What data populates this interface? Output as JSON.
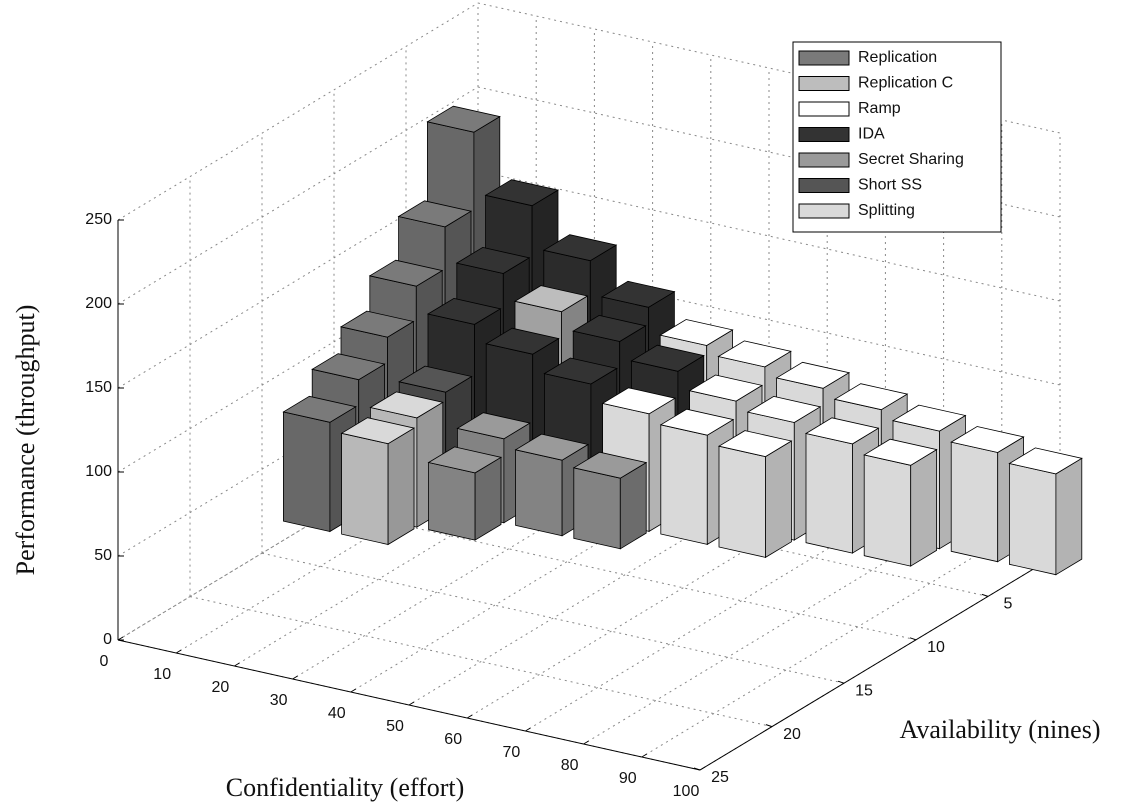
{
  "chart_data": {
    "type": "bar3d",
    "x_label": "Confidentiality (effort)",
    "y_label": "Availability (nines)",
    "z_label": "Performance (throughput)",
    "xlim": [
      0,
      100
    ],
    "xticks": [
      0,
      10,
      20,
      30,
      40,
      50,
      60,
      70,
      80,
      90,
      100
    ],
    "ylim": [
      0,
      25
    ],
    "yticks": [
      5,
      10,
      15,
      20,
      25
    ],
    "zlim": [
      0,
      250
    ],
    "zticks": [
      0,
      50,
      100,
      150,
      200,
      250
    ],
    "grid": true,
    "legend": "upper right",
    "series": [
      {
        "name": "Replication",
        "color": "#7a7a7a",
        "x": [
          0,
          0,
          0,
          0,
          0,
          0
        ],
        "y": [
          1,
          3,
          5,
          7,
          9,
          11
        ],
        "values": [
          186,
          140,
          115,
          95,
          80,
          65
        ]
      },
      {
        "name": "Replication C",
        "color": "#bdbdbd",
        "x": [
          20
        ],
        "y": [
          3
        ],
        "values": [
          105
        ]
      },
      {
        "name": "Ramp",
        "color": "#ffffff",
        "x": [
          40,
          50,
          60,
          70,
          80,
          90,
          100,
          50,
          60,
          70,
          80,
          40,
          50,
          60
        ],
        "y": [
          1,
          1,
          1,
          1,
          1,
          1,
          1,
          3,
          3,
          3,
          3,
          5,
          5,
          5
        ],
        "values": [
          90,
          85,
          80,
          75,
          70,
          65,
          60,
          75,
          70,
          65,
          60,
          70,
          65,
          60
        ]
      },
      {
        "name": "IDA",
        "color": "#333333",
        "x": [
          10,
          20,
          30,
          10,
          30,
          40,
          10,
          20,
          30
        ],
        "y": [
          1,
          1,
          1,
          3,
          3,
          3,
          5,
          5,
          5
        ],
        "values": [
          150,
          125,
          105,
          120,
          95,
          85,
          100,
          90,
          80
        ]
      },
      {
        "name": "Secret Sharing",
        "color": "#9a9a9a",
        "x": [
          20,
          30,
          40,
          20
        ],
        "y": [
          7,
          7,
          7,
          9
        ],
        "values": [
          50,
          45,
          42,
          40
        ]
      },
      {
        "name": "Short SS",
        "color": "#555555",
        "x": [
          10
        ],
        "y": [
          7
        ],
        "values": [
          70
        ]
      },
      {
        "name": "Splitting",
        "color": "#d9d9d9",
        "x": [
          10,
          10
        ],
        "y": [
          9,
          11
        ],
        "values": [
          65,
          60
        ]
      }
    ]
  }
}
